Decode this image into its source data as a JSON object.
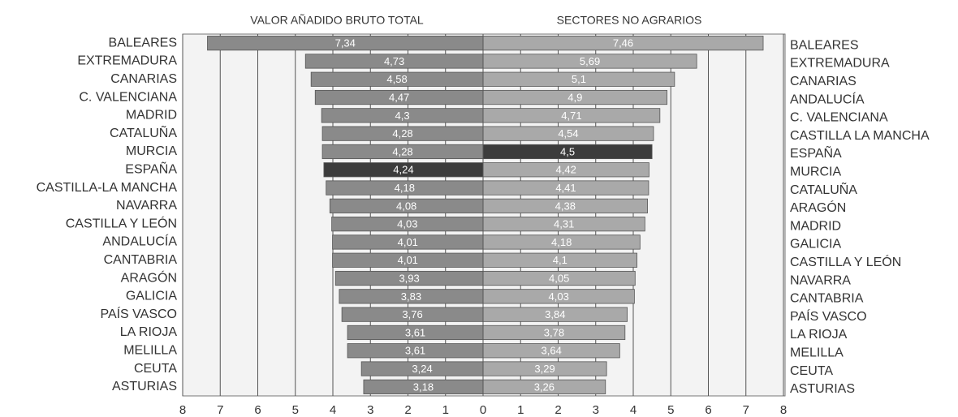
{
  "chart_data": [
    {
      "type": "bar",
      "orientation": "horizontal",
      "direction": "left",
      "title": "VALOR AÑADIDO BRUTO TOTAL",
      "categories": [
        "BALEARES",
        "EXTREMADURA",
        "CANARIAS",
        "C. VALENCIANA",
        "MADRID",
        "CATALUÑA",
        "MURCIA",
        "ESPAÑA",
        "CASTILLA-LA MANCHA",
        "NAVARRA",
        "CASTILLA Y LEÓN",
        "ANDALUCÍA",
        "CANTABRIA",
        "ARAGÓN",
        "GALICIA",
        "PAÍS VASCO",
        "LA RIOJA",
        "MELILLA",
        "CEUTA",
        "ASTURIAS"
      ],
      "values": [
        7.34,
        4.73,
        4.58,
        4.47,
        4.3,
        4.28,
        4.28,
        4.24,
        4.18,
        4.08,
        4.03,
        4.01,
        4.01,
        3.93,
        3.83,
        3.76,
        3.61,
        3.61,
        3.24,
        3.18
      ],
      "value_labels": [
        "7,34",
        "4,73",
        "4,58",
        "4,47",
        "4,3",
        "4,28",
        "4,28",
        "4,24",
        "4,18",
        "4,08",
        "4,03",
        "4,01",
        "4,01",
        "3,93",
        "3,83",
        "3,76",
        "3,61",
        "3,61",
        "3,24",
        "3,18"
      ],
      "colors": [
        "#8a8a8a",
        "#8a8a8a",
        "#8a8a8a",
        "#8a8a8a",
        "#8a8a8a",
        "#8a8a8a",
        "#8a8a8a",
        "#3c3c3c",
        "#8a8a8a",
        "#8a8a8a",
        "#8a8a8a",
        "#8a8a8a",
        "#8a8a8a",
        "#8a8a8a",
        "#8a8a8a",
        "#8a8a8a",
        "#8a8a8a",
        "#8a8a8a",
        "#8a8a8a",
        "#8a8a8a"
      ],
      "xlim": [
        0,
        8
      ],
      "xticks": [
        0,
        1,
        2,
        3,
        4,
        5,
        6,
        7,
        8
      ],
      "grid": true
    },
    {
      "type": "bar",
      "orientation": "horizontal",
      "direction": "right",
      "title": "SECTORES NO AGRARIOS",
      "categories": [
        "BALEARES",
        "EXTREMADURA",
        "CANARIAS",
        "ANDALUCÍA",
        "C. VALENCIANA",
        "CASTILLA LA MANCHA",
        "ESPAÑA",
        "MURCIA",
        "CATALUÑA",
        "ARAGÓN",
        "MADRID",
        "GALICIA",
        "CASTILLA Y LEÓN",
        "NAVARRA",
        "CANTABRIA",
        "PAÍS VASCO",
        "LA RIOJA",
        "MELILLA",
        "CEUTA",
        "ASTURIAS"
      ],
      "values": [
        7.46,
        5.69,
        5.1,
        4.9,
        4.71,
        4.54,
        4.5,
        4.42,
        4.41,
        4.38,
        4.31,
        4.18,
        4.1,
        4.05,
        4.03,
        3.84,
        3.78,
        3.64,
        3.29,
        3.26
      ],
      "value_labels": [
        "7,46",
        "5,69",
        "5,1",
        "4,9",
        "4,71",
        "4,54",
        "4,5",
        "4,42",
        "4,41",
        "4,38",
        "4,31",
        "4,18",
        "4,1",
        "4,05",
        "4,03",
        "3,84",
        "3,78",
        "3,64",
        "3,29",
        "3,26"
      ],
      "colors": [
        "#a9a9a9",
        "#a9a9a9",
        "#a9a9a9",
        "#a9a9a9",
        "#a9a9a9",
        "#a9a9a9",
        "#3c3c3c",
        "#a9a9a9",
        "#a9a9a9",
        "#a9a9a9",
        "#a9a9a9",
        "#a9a9a9",
        "#a9a9a9",
        "#a9a9a9",
        "#a9a9a9",
        "#a9a9a9",
        "#a9a9a9",
        "#a9a9a9",
        "#a9a9a9",
        "#a9a9a9"
      ],
      "xlim": [
        0,
        8
      ],
      "xticks": [
        0,
        1,
        2,
        3,
        4,
        5,
        6,
        7,
        8
      ],
      "grid": true
    }
  ]
}
